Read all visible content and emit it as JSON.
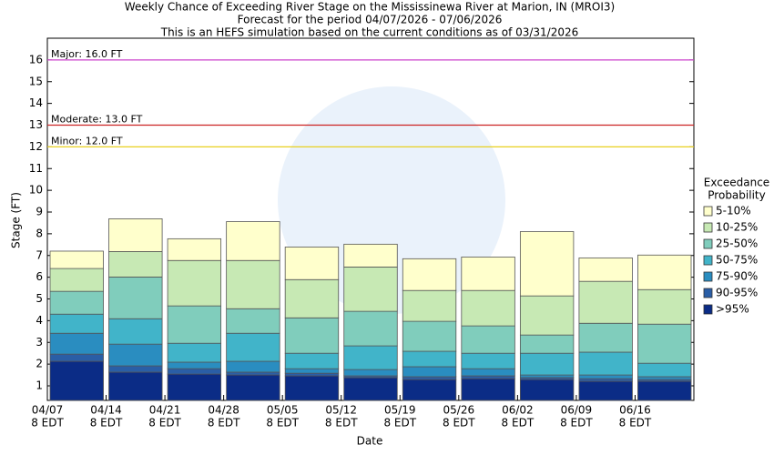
{
  "chart_data": {
    "type": "band",
    "title_lines": [
      "Weekly Chance of Exceeding River Stage on the Mississinewa River at Marion, IN (MROI3)",
      "Forecast for the period 04/07/2026 - 07/06/2026",
      "This is an HEFS simulation based on the current conditions as of 03/31/2026"
    ],
    "x_label": "Date",
    "y_label": "Stage (FT)",
    "categories": [
      "04/07",
      "04/14",
      "04/21",
      "04/28",
      "05/05",
      "05/12",
      "05/19",
      "05/26",
      "06/02",
      "06/09",
      "06/16"
    ],
    "x_tick_sublabel": "8 EDT",
    "legend_title": [
      "Exceedance",
      "Probability"
    ],
    "series": [
      {
        "name": ">95%",
        "color": "#0b2c86",
        "values": [
          2.13,
          1.63,
          1.54,
          1.5,
          1.46,
          1.38,
          1.29,
          1.33,
          1.29,
          1.21,
          1.21
        ]
      },
      {
        "name": "90-95%",
        "color": "#2a5ea6",
        "values": [
          2.46,
          1.92,
          1.79,
          1.63,
          1.58,
          1.46,
          1.42,
          1.46,
          1.38,
          1.33,
          1.29
        ]
      },
      {
        "name": "75-90%",
        "color": "#2a8dc0",
        "values": [
          3.42,
          2.92,
          2.09,
          2.13,
          1.79,
          1.75,
          1.88,
          1.79,
          1.5,
          1.5,
          1.42
        ]
      },
      {
        "name": "50-75%",
        "color": "#41b4c9",
        "values": [
          4.3,
          4.09,
          2.96,
          3.42,
          2.5,
          2.84,
          2.59,
          2.5,
          2.5,
          2.55,
          2.04
        ]
      },
      {
        "name": "25-50%",
        "color": "#80cdbc",
        "values": [
          5.35,
          6.01,
          4.68,
          4.55,
          4.13,
          4.43,
          3.97,
          3.76,
          3.34,
          3.88,
          3.84
        ]
      },
      {
        "name": "10-25%",
        "color": "#c7e9b4",
        "values": [
          6.4,
          7.18,
          6.77,
          6.77,
          5.89,
          6.47,
          5.39,
          5.39,
          5.14,
          5.81,
          5.43
        ]
      },
      {
        "name": "5-10%",
        "color": "#ffffcc",
        "values": [
          7.2,
          8.69,
          7.77,
          8.56,
          7.39,
          7.52,
          6.85,
          6.93,
          8.1,
          6.89,
          7.02
        ]
      }
    ],
    "thresholds": [
      {
        "label": "Major: 16.0 FT",
        "value": 16,
        "color": "#cc44cc"
      },
      {
        "label": "Moderate: 13.0 FT",
        "value": 13,
        "color": "#cc2222"
      },
      {
        "label": "Minor: 12.0 FT",
        "value": 12,
        "color": "#e8d020"
      }
    ],
    "ylim": [
      0.33,
      17
    ],
    "yticks": [
      1,
      2,
      3,
      4,
      5,
      6,
      7,
      8,
      9,
      10,
      11,
      12,
      13,
      14,
      15,
      16
    ]
  }
}
